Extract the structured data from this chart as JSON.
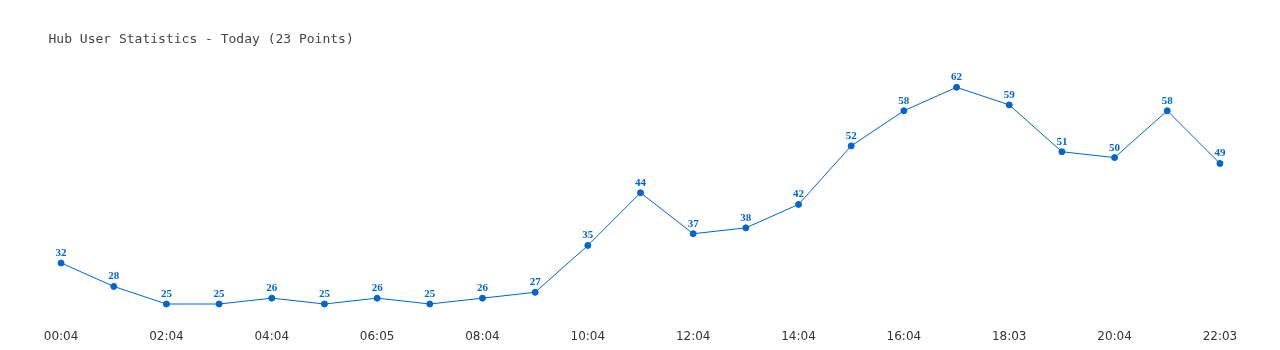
{
  "chart_data": {
    "type": "line",
    "title": "Hub User Statistics - Today (23 Points)",
    "categories": [
      "00:04",
      null,
      "02:04",
      null,
      "04:04",
      null,
      "06:05",
      null,
      "08:04",
      null,
      "10:04",
      null,
      "12:04",
      null,
      "14:04",
      null,
      "16:04",
      null,
      "18:03",
      null,
      "20:04",
      null,
      "22:03"
    ],
    "series": [
      {
        "color": "#0066cc",
        "values": [
          32,
          28,
          25,
          25,
          26,
          25,
          26,
          25,
          26,
          27,
          35,
          44,
          37,
          38,
          42,
          52,
          58,
          62,
          59,
          51,
          50,
          58,
          49
        ]
      }
    ],
    "data_labels": true,
    "marker": "circle",
    "grid": false
  }
}
